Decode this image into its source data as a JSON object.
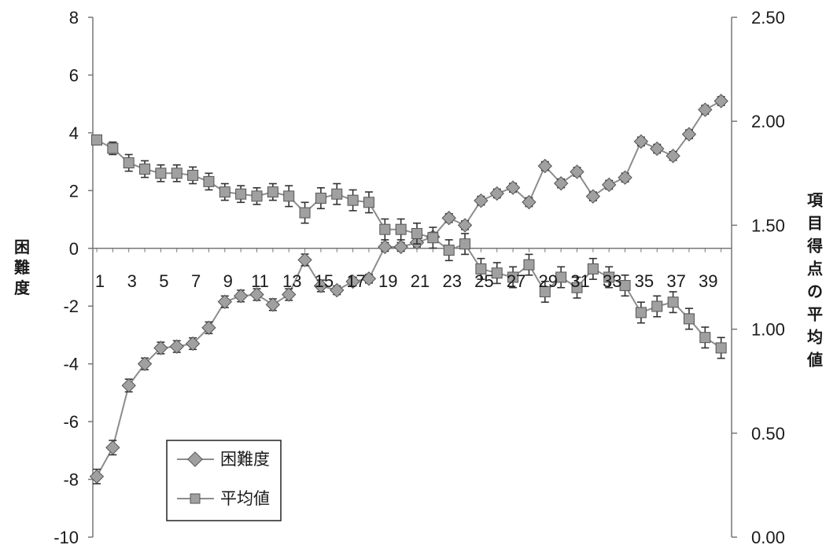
{
  "chart_data": {
    "type": "line",
    "x": [
      1,
      2,
      3,
      4,
      5,
      6,
      7,
      8,
      9,
      10,
      11,
      12,
      13,
      14,
      15,
      16,
      17,
      18,
      19,
      20,
      21,
      22,
      23,
      24,
      25,
      26,
      27,
      28,
      29,
      30,
      31,
      32,
      33,
      34,
      35,
      36,
      37,
      38,
      39,
      40
    ],
    "xticklabels": [
      "1",
      "3",
      "5",
      "7",
      "9",
      "11",
      "13",
      "15",
      "17",
      "19",
      "21",
      "23",
      "25",
      "27",
      "29",
      "31",
      "33",
      "35",
      "37",
      "39"
    ],
    "ylabel": "困難度",
    "ylim": [
      -10,
      8
    ],
    "yticks": [
      "-10",
      "-8",
      "-6",
      "-4",
      "-2",
      "0",
      "2",
      "4",
      "6",
      "8"
    ],
    "y2label": "項目得点の平均値",
    "y2lim": [
      0.0,
      2.5
    ],
    "y2ticks": [
      "0.00",
      "0.50",
      "1.00",
      "1.50",
      "2.00",
      "2.50"
    ],
    "legend_position": "bottom-left",
    "colors": {
      "series": "#8c8c8c",
      "marker_edge": "#555555",
      "axis": "#777777",
      "error_bar": "#333333"
    },
    "series": [
      {
        "name": "困難度",
        "axis": "left",
        "marker": "diamond",
        "values": [
          -7.9,
          -6.9,
          -4.75,
          -4.0,
          -3.45,
          -3.4,
          -3.3,
          -2.75,
          -1.85,
          -1.65,
          -1.6,
          -1.95,
          -1.6,
          -0.4,
          -1.3,
          -1.45,
          -1.15,
          -1.05,
          0.05,
          0.05,
          0.2,
          0.4,
          1.05,
          0.8,
          1.65,
          1.9,
          2.1,
          1.6,
          2.85,
          2.25,
          2.65,
          1.8,
          2.2,
          2.45,
          3.7,
          3.45,
          3.2,
          3.95,
          4.8,
          5.1
        ],
        "error": [
          0.25,
          0.25,
          0.22,
          0.2,
          0.2,
          0.2,
          0.2,
          0.2,
          0.2,
          0.2,
          0.2,
          0.2,
          0.2,
          0.2,
          0.2,
          0.15,
          0.15,
          0.15,
          0.15,
          0.15,
          0.15,
          0.15,
          0.15,
          0.15,
          0.15,
          0.15,
          0.15,
          0.15,
          0.15,
          0.15,
          0.15,
          0.15,
          0.15,
          0.15,
          0.15,
          0.15,
          0.15,
          0.15,
          0.15,
          0.15
        ]
      },
      {
        "name": "平均値",
        "axis": "right",
        "marker": "square",
        "values": [
          1.91,
          1.87,
          1.8,
          1.77,
          1.75,
          1.75,
          1.74,
          1.71,
          1.66,
          1.65,
          1.64,
          1.66,
          1.64,
          1.56,
          1.63,
          1.65,
          1.62,
          1.61,
          1.48,
          1.48,
          1.46,
          1.44,
          1.38,
          1.41,
          1.29,
          1.27,
          1.25,
          1.31,
          1.18,
          1.25,
          1.2,
          1.29,
          1.25,
          1.21,
          1.08,
          1.11,
          1.13,
          1.05,
          0.96,
          0.91
        ],
        "error": [
          0.02,
          0.03,
          0.04,
          0.04,
          0.04,
          0.04,
          0.04,
          0.04,
          0.04,
          0.04,
          0.04,
          0.04,
          0.05,
          0.05,
          0.05,
          0.05,
          0.05,
          0.05,
          0.05,
          0.05,
          0.05,
          0.05,
          0.05,
          0.05,
          0.05,
          0.05,
          0.05,
          0.05,
          0.05,
          0.05,
          0.05,
          0.05,
          0.05,
          0.05,
          0.05,
          0.05,
          0.05,
          0.05,
          0.05,
          0.05
        ]
      }
    ]
  }
}
